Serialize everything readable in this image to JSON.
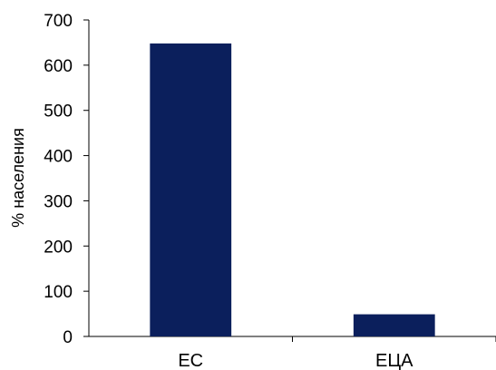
{
  "chart_data": {
    "type": "bar",
    "categories": [
      "ЕС",
      "ЕЦА"
    ],
    "values": [
      648,
      49
    ],
    "ylabel": "% населения",
    "xlabel": "",
    "ylim": [
      0,
      700
    ],
    "yticks": [
      "0",
      "100",
      "200",
      "300",
      "400",
      "500",
      "600",
      "700"
    ],
    "grid": false,
    "legend": "none",
    "bar_color": "#0b1f5c"
  }
}
